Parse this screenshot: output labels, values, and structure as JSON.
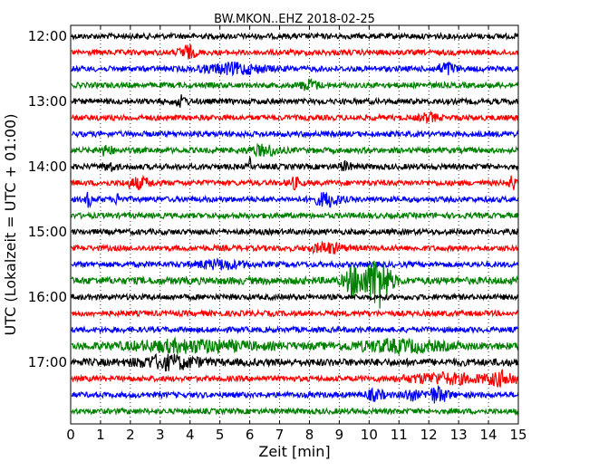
{
  "chart_data": {
    "type": "line",
    "title": "BW.MKON..EHZ 2018-02-25",
    "xlabel": "Zeit  [min]",
    "ylabel": "UTC (Lokalzeit = UTC + 01:00)",
    "xlim": [
      0,
      15
    ],
    "x_ticks": [
      "0",
      "1",
      "2",
      "3",
      "4",
      "5",
      "6",
      "7",
      "8",
      "9",
      "10",
      "11",
      "12",
      "13",
      "14",
      "15"
    ],
    "y_tick_labels": [
      "12:00",
      "13:00",
      "14:00",
      "15:00",
      "16:00",
      "17:00"
    ],
    "grid": "dotted-vertical",
    "row_minutes": 15,
    "colors": [
      "#000000",
      "#ff0000",
      "#0000ff",
      "#008000"
    ],
    "traces": [
      {
        "start": "12:00",
        "amp": 3,
        "events": []
      },
      {
        "start": "12:15",
        "amp": 3,
        "events": [
          [
            3.9,
            7,
            0.25
          ]
        ]
      },
      {
        "start": "12:30",
        "amp": 3,
        "events": [
          [
            5.5,
            5,
            1.0
          ],
          [
            12.6,
            6,
            0.3
          ]
        ]
      },
      {
        "start": "12:45",
        "amp": 3,
        "events": [
          [
            8.0,
            5,
            0.3
          ]
        ]
      },
      {
        "start": "13:00",
        "amp": 3,
        "events": [
          [
            3.7,
            5,
            0.2
          ]
        ]
      },
      {
        "start": "13:15",
        "amp": 3,
        "events": [
          [
            12.0,
            4,
            0.3
          ]
        ]
      },
      {
        "start": "13:30",
        "amp": 3,
        "events": []
      },
      {
        "start": "13:45",
        "amp": 3,
        "events": [
          [
            1.2,
            5,
            0.2
          ],
          [
            6.5,
            5,
            0.5
          ]
        ]
      },
      {
        "start": "14:00",
        "amp": 3,
        "events": [
          [
            6.0,
            8,
            0.05
          ],
          [
            1.3,
            4,
            0.2
          ],
          [
            9.2,
            4,
            0.2
          ]
        ]
      },
      {
        "start": "14:15",
        "amp": 3,
        "events": [
          [
            2.3,
            5,
            0.4
          ],
          [
            7.5,
            5,
            0.2
          ],
          [
            14.8,
            8,
            0.1
          ]
        ]
      },
      {
        "start": "14:30",
        "amp": 3,
        "events": [
          [
            0.6,
            7,
            0.1
          ],
          [
            1.6,
            6,
            0.1
          ],
          [
            8.6,
            7,
            0.4
          ]
        ]
      },
      {
        "start": "14:45",
        "amp": 3,
        "events": []
      },
      {
        "start": "15:00",
        "amp": 3,
        "events": []
      },
      {
        "start": "15:15",
        "amp": 3,
        "events": [
          [
            8.6,
            5,
            0.5
          ]
        ]
      },
      {
        "start": "15:30",
        "amp": 3,
        "events": [
          [
            5.0,
            4,
            0.8
          ]
        ]
      },
      {
        "start": "15:45",
        "amp": 4,
        "events": [
          [
            9.5,
            16,
            0.3
          ],
          [
            10.3,
            28,
            0.4
          ]
        ]
      },
      {
        "start": "16:00",
        "amp": 3,
        "events": []
      },
      {
        "start": "16:15",
        "amp": 3,
        "events": []
      },
      {
        "start": "16:30",
        "amp": 3,
        "events": []
      },
      {
        "start": "16:45",
        "amp": 4,
        "events": [
          [
            4.0,
            5,
            2.0
          ],
          [
            11.0,
            5,
            1.5
          ]
        ]
      },
      {
        "start": "17:00",
        "amp": 4,
        "events": [
          [
            3.3,
            6,
            1.0
          ]
        ]
      },
      {
        "start": "17:15",
        "amp": 3,
        "events": [
          [
            12.5,
            5,
            1.3
          ],
          [
            14.5,
            7,
            0.5
          ]
        ]
      },
      {
        "start": "17:30",
        "amp": 3,
        "events": [
          [
            10.2,
            5,
            0.3
          ],
          [
            12.3,
            8,
            0.35
          ],
          [
            11.4,
            5,
            0.25
          ]
        ]
      },
      {
        "start": "17:45",
        "amp": 3,
        "events": []
      }
    ]
  }
}
